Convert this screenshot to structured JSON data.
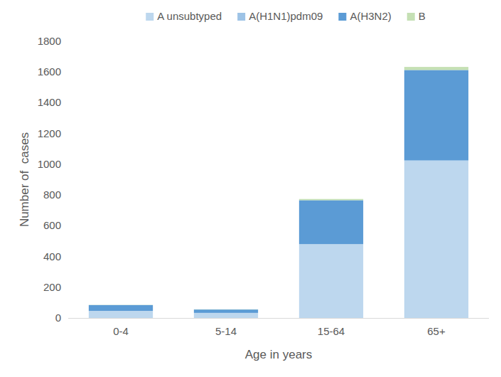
{
  "chart_data": {
    "type": "bar",
    "stacked": true,
    "grid": false,
    "legend": "top",
    "x_label": "Age in years",
    "y_label": "Number of  cases",
    "categories": [
      "0-4",
      "5-14",
      "15-64",
      "65+"
    ],
    "series": [
      {
        "name": "A unsubtyped",
        "color": "#bdd7ee",
        "values": [
          45,
          32,
          478,
          1020
        ]
      },
      {
        "name": "A(H1N1)pdm09",
        "color": "#9dc3e6",
        "values": [
          1,
          1,
          3,
          5
        ]
      },
      {
        "name": "A(H3N2)",
        "color": "#5b9bd5",
        "values": [
          38,
          22,
          285,
          588
        ]
      },
      {
        "name": "B",
        "color": "#c5e0b4",
        "values": [
          1,
          1,
          8,
          20
        ]
      }
    ],
    "ylim": [
      0,
      1800
    ],
    "yticks": [
      0,
      200,
      400,
      600,
      800,
      1000,
      1200,
      1400,
      1600,
      1800
    ]
  }
}
